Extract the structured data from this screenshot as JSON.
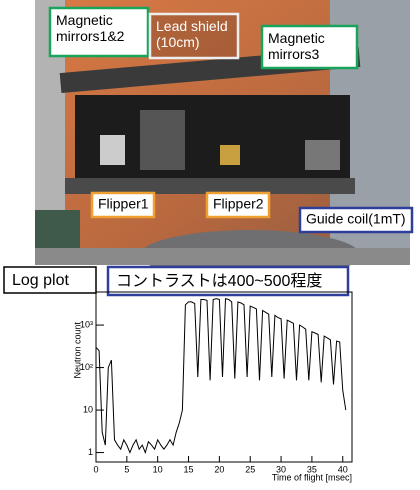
{
  "photo": {
    "labels": [
      "Magnetic\nmirrors1&2",
      "Lead shield\n(10cm)",
      "Magnetic\nmirrors3",
      "Flipper1",
      "Flipper2",
      "Guide coil(1mT)"
    ]
  },
  "chart_data": {
    "type": "line",
    "annotations": [
      "Log plot",
      "コントラストは400~500程度"
    ],
    "xlabel": "Time of flight [msec]",
    "ylabel": "Neutron count",
    "x": [
      0,
      0.5,
      1,
      1.5,
      2,
      2.5,
      3,
      3.5,
      4,
      4.5,
      5,
      5.5,
      6,
      6.5,
      7,
      7.5,
      8,
      8.5,
      9,
      9.5,
      10,
      10.5,
      11,
      11.5,
      12,
      12.5,
      13,
      13.5,
      14,
      14.5,
      15,
      15.5,
      16,
      16.5,
      17,
      17.5,
      18,
      18.5,
      19,
      19.5,
      20,
      20.5,
      21,
      21.5,
      22,
      22.5,
      23,
      23.5,
      24,
      24.5,
      25,
      25.5,
      26,
      26.5,
      27,
      27.5,
      28,
      28.5,
      29,
      29.5,
      30,
      30.5,
      31,
      31.5,
      32,
      32.5,
      33,
      33.5,
      34,
      34.5,
      35,
      35.5,
      36,
      36.5,
      37,
      37.5,
      38,
      38.5,
      39,
      39.5,
      40,
      40.5
    ],
    "values": [
      300,
      250,
      3,
      1.5,
      100,
      150,
      2,
      1.5,
      1.2,
      2,
      1.5,
      1,
      1.5,
      2,
      1.2,
      1.5,
      1,
      1.8,
      1.5,
      1.2,
      2,
      1.5,
      1.2,
      1.5,
      2,
      1.5,
      3,
      5,
      10,
      3000,
      3500,
      3500,
      3200,
      60,
      4000,
      4000,
      3800,
      50,
      4000,
      4200,
      4000,
      60,
      4200,
      4000,
      3500,
      55,
      3500,
      3300,
      3000,
      60,
      2800,
      2600,
      2400,
      50,
      2200,
      2000,
      1800,
      60,
      1700,
      1500,
      1400,
      55,
      1300,
      1200,
      1100,
      50,
      1000,
      900,
      800,
      50,
      700,
      650,
      600,
      45,
      550,
      500,
      450,
      40,
      420,
      400,
      30,
      10
    ],
    "color": "#000000",
    "log_y": true,
    "xlim": [
      0,
      41.5
    ],
    "xticks": [
      0,
      5,
      10,
      15,
      20,
      25,
      30,
      35,
      40
    ],
    "ylim": [
      0.6,
      6000
    ],
    "yticks": [
      1,
      10,
      {
        "value": 100,
        "label": "10²"
      },
      {
        "value": 1000,
        "label": "10³"
      }
    ]
  }
}
